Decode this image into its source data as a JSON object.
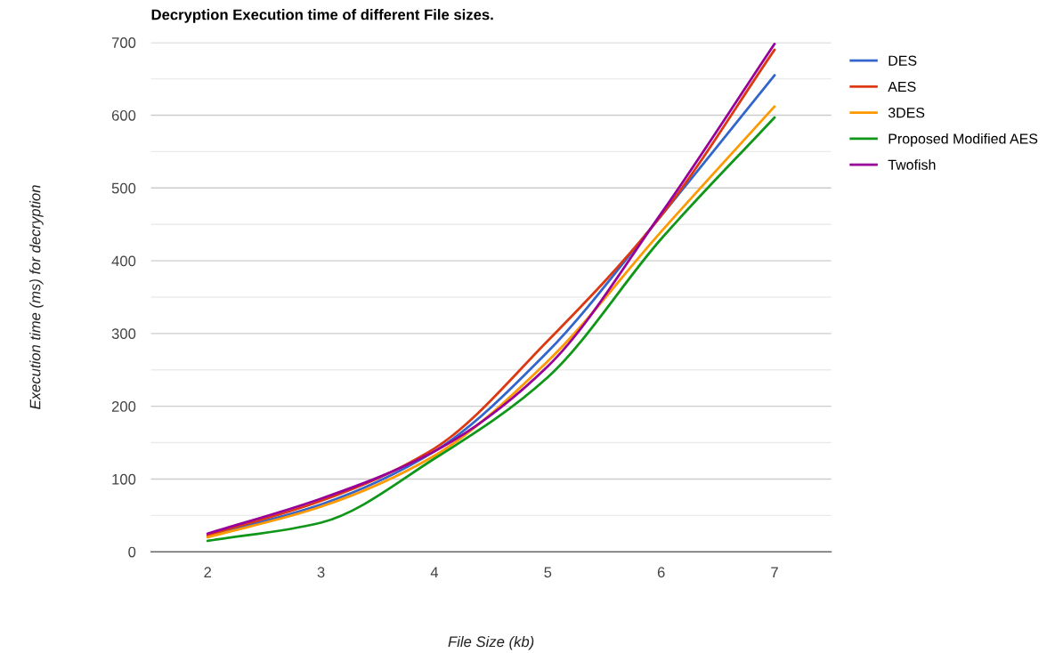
{
  "chart_data": {
    "type": "line",
    "title": "Decryption Execution time of different File sizes.",
    "xlabel": "File Size (kb)",
    "ylabel": "Execution time (ms) for decryption",
    "x": [
      2,
      3,
      4,
      5,
      6,
      7
    ],
    "series": [
      {
        "name": "DES",
        "color": "#3366cc",
        "values": [
          22,
          65,
          138,
          275,
          462,
          655
        ]
      },
      {
        "name": "AES",
        "color": "#dc3912",
        "values": [
          23,
          70,
          142,
          290,
          462,
          690
        ]
      },
      {
        "name": "3DES",
        "color": "#ff9900",
        "values": [
          20,
          62,
          132,
          262,
          440,
          612
        ]
      },
      {
        "name": "Proposed Modified AES",
        "color": "#109618",
        "values": [
          15,
          40,
          128,
          240,
          430,
          597
        ]
      },
      {
        "name": "Twofish",
        "color": "#990099",
        "values": [
          25,
          73,
          138,
          255,
          465,
          698
        ]
      }
    ],
    "xlim": [
      1.5,
      7.5
    ],
    "xticks": [
      2,
      3,
      4,
      5,
      6,
      7
    ],
    "ylim": [
      0,
      700
    ],
    "yticks": [
      0,
      {
        "value": 50,
        "label": null
      },
      100,
      {
        "value": 150,
        "label": null
      },
      200,
      {
        "value": 250,
        "label": null
      },
      300,
      {
        "value": 350,
        "label": null
      },
      400,
      {
        "value": 450,
        "label": null
      },
      500,
      {
        "value": 550,
        "label": null
      },
      600,
      {
        "value": 650,
        "label": null
      },
      700
    ],
    "grid": "y",
    "legend": "top right",
    "marker": "none",
    "line_style": "solid"
  }
}
